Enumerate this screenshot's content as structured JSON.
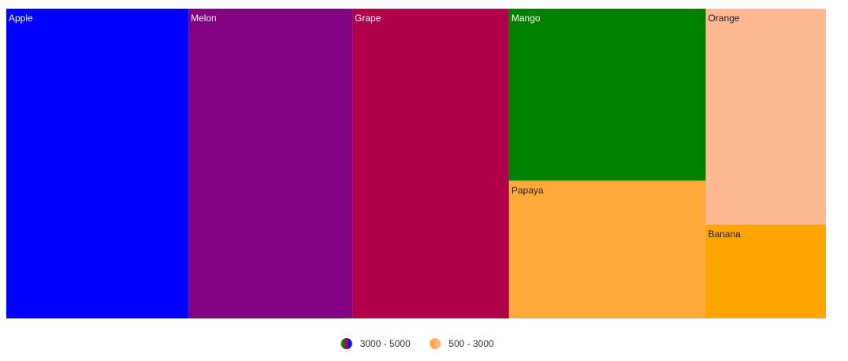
{
  "chart_data": {
    "type": "treemap",
    "title": "",
    "items": [
      {
        "label": "Apple",
        "value": 5000,
        "color": "#0000FF",
        "text_color": "#FFFFFF"
      },
      {
        "label": "Melon",
        "value": 4500,
        "color": "#800080",
        "text_color": "#FFFFFF"
      },
      {
        "label": "Grape",
        "value": 4300,
        "color": "#B1004A",
        "text_color": "#FFFFFF"
      },
      {
        "label": "Mango",
        "value": 3000,
        "color": "#008000",
        "text_color": "#FFFFFF"
      },
      {
        "label": "Orange",
        "value": 2300,
        "color": "#FFB891",
        "text_color": "#222222"
      },
      {
        "label": "Papaya",
        "value": 2400,
        "color": "#FFAA3A",
        "text_color": "#222222"
      },
      {
        "label": "Banana",
        "value": 1000,
        "color": "#FFA500",
        "text_color": "#222222"
      }
    ],
    "legend": [
      {
        "label": "3000 - 5000",
        "colors": [
          "#008000",
          "#B1004A",
          "#0000FF"
        ]
      },
      {
        "label": "500 - 3000",
        "colors": [
          "#FFAA3A",
          "#FFB891"
        ]
      }
    ]
  }
}
